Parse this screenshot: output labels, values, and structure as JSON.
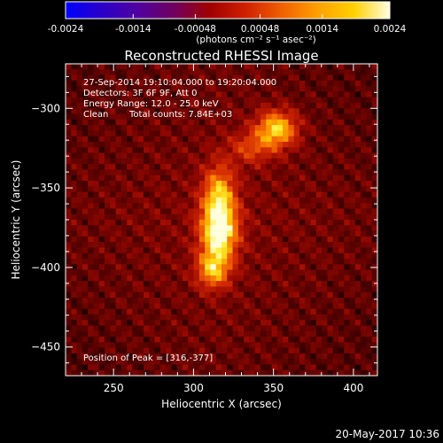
{
  "chart_data": {
    "type": "heatmap",
    "title": "Reconstructed RHESSI Image",
    "xlabel": "Heliocentric X (arcsec)",
    "ylabel": "Heliocentric Y (arcsec)",
    "xlim": [
      220,
      415
    ],
    "ylim": [
      -468,
      -272
    ],
    "x_ticks": [
      250,
      300,
      350,
      400
    ],
    "y_ticks": [
      -300,
      -350,
      -400,
      -450
    ],
    "colorbar": {
      "range": [
        -0.0024,
        0.0024
      ],
      "tick_values": [
        -0.0024,
        -0.0014,
        -0.00048,
        0.00048,
        0.0014,
        0.0024
      ],
      "tick_labels": [
        "-0.0024",
        "-0.0014",
        "-0.00048",
        "0.00048",
        "0.0014",
        "0.0024"
      ],
      "units": "(photons cm⁻² s⁻¹ asec⁻²)",
      "colors": [
        "#0000ff",
        "#2a00c8",
        "#5000a0",
        "#700060",
        "#a00000",
        "#d02000",
        "#f06000",
        "#ffa000",
        "#ffd000",
        "#ffffe0"
      ]
    },
    "sources": [
      {
        "x": 316,
        "y": -377,
        "rel_intensity": 1.0,
        "sx": 8,
        "sy": 14
      },
      {
        "x": 316,
        "y": -352,
        "rel_intensity": 0.55,
        "sx": 7,
        "sy": 12
      },
      {
        "x": 312,
        "y": -402,
        "rel_intensity": 0.6,
        "sx": 7,
        "sy": 8
      },
      {
        "x": 352,
        "y": -313,
        "rel_intensity": 0.8,
        "sx": 9,
        "sy": 8
      },
      {
        "x": 336,
        "y": -325,
        "rel_intensity": 0.35,
        "sx": 10,
        "sy": 7
      }
    ],
    "annotations": {
      "time_range": "27-Sep-2014 19:10:04.000 to 19:20:04.000",
      "detectors": "Detectors: 3F 6F 9F, Att 0",
      "energy_range": "Energy Range: 12.0 - 25.0 keV",
      "method": "Clean",
      "total_counts": "Total counts: 7.84E+03",
      "peak": "Position of Peak = [316,-377]"
    }
  },
  "footer": {
    "timestamp": "20-May-2017 10:36"
  },
  "colors": {
    "background": "#000000",
    "text": "#ffffff"
  }
}
